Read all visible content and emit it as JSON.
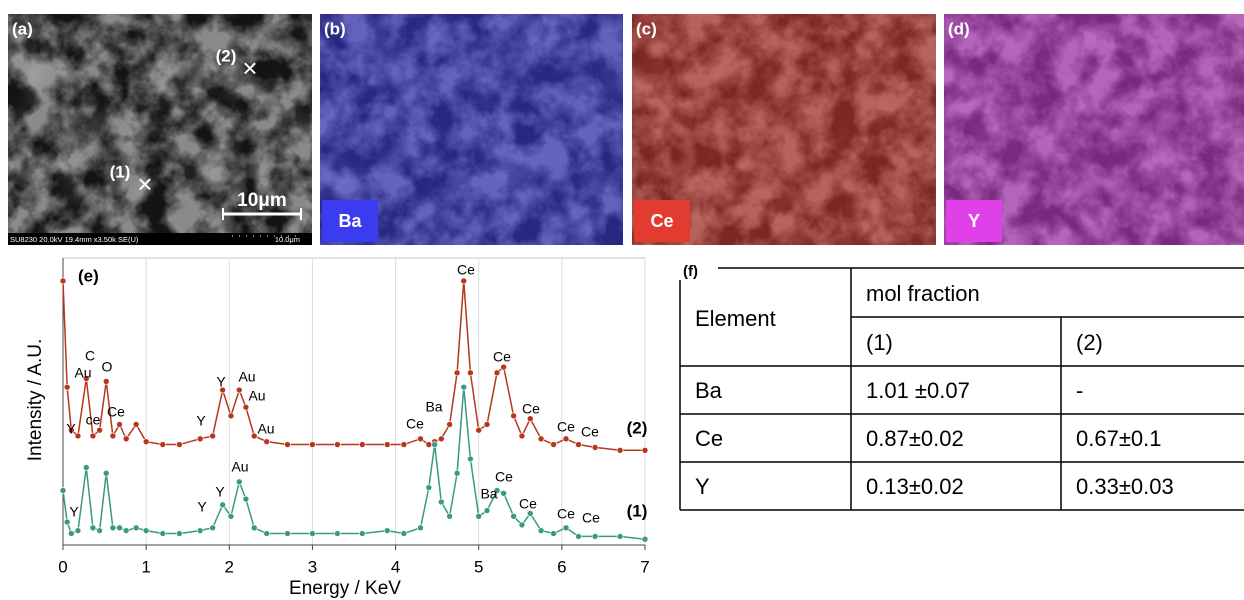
{
  "panels": [
    {
      "label": "(a)",
      "markers": [
        {
          "label": "(1)",
          "symbol": "×"
        },
        {
          "label": "(2)",
          "symbol": "×"
        }
      ],
      "scale_bar": "10μm",
      "info_bar": "SU8230 20.0kV 19.4mm x3.50k SE(U)",
      "info_scale": "10.0μm"
    },
    {
      "label": "(b)",
      "element": "Ba"
    },
    {
      "label": "(c)",
      "element": "Ce"
    },
    {
      "label": "(d)",
      "element": "Y"
    }
  ],
  "chart_data": {
    "type": "line",
    "label": "(e)",
    "xlabel": "Energy / KeV",
    "ylabel": "Intensity / A.U.",
    "x": [
      0,
      0.05,
      0.1,
      0.18,
      0.28,
      0.36,
      0.44,
      0.52,
      0.6,
      0.68,
      0.76,
      0.88,
      1.0,
      1.2,
      1.4,
      1.65,
      1.8,
      1.92,
      2.02,
      2.12,
      2.2,
      2.3,
      2.45,
      2.7,
      3.0,
      3.3,
      3.6,
      3.9,
      4.1,
      4.3,
      4.4,
      4.47,
      4.55,
      4.65,
      4.74,
      4.82,
      4.9,
      5.0,
      5.1,
      5.22,
      5.3,
      5.42,
      5.52,
      5.62,
      5.75,
      5.9,
      6.05,
      6.2,
      6.4,
      6.7,
      7.0
    ],
    "series": [
      {
        "name": "(2)",
        "color": "#b5371c",
        "values": [
          92,
          55,
          40,
          38,
          58,
          38,
          40,
          57,
          38,
          42,
          37,
          42,
          36,
          35,
          35,
          37,
          38,
          54,
          45,
          54,
          48,
          38,
          36,
          35,
          35,
          35,
          35,
          35,
          35,
          37,
          35,
          36,
          37,
          42,
          60,
          92,
          60,
          40,
          42,
          60,
          62,
          45,
          38,
          44,
          37,
          35,
          37,
          35,
          34,
          33,
          33
        ],
        "annotations": [
          "C",
          "Au",
          "O",
          "Y",
          "ce",
          "Ce",
          "Y",
          "Y",
          "Au",
          "Au",
          "Au",
          "Ce",
          "Ba",
          "Ce",
          "Ce",
          "Ce",
          "Ce",
          "Ce"
        ]
      },
      {
        "name": "(1)",
        "color": "#3a9a7f",
        "values": [
          19,
          8,
          4,
          5,
          27,
          6,
          5,
          25,
          6,
          6,
          5,
          6,
          5,
          4,
          4,
          5,
          6,
          14,
          10,
          22,
          16,
          6,
          4,
          4,
          4,
          4,
          4,
          5,
          4,
          6,
          20,
          35,
          15,
          10,
          25,
          55,
          30,
          10,
          12,
          19,
          18,
          10,
          7,
          11,
          5,
          4,
          6,
          3,
          3,
          3,
          2
        ],
        "annotations": [
          "Y",
          "Y",
          "Y",
          "Au",
          "Ba",
          "Ce",
          "Ce",
          "Ce",
          "Ce"
        ]
      }
    ],
    "xlim": [
      0,
      7
    ],
    "xticks": [
      0,
      1,
      2,
      3,
      4,
      5,
      6,
      7
    ],
    "ylim": [
      0,
      100
    ],
    "grid": true
  },
  "table": {
    "label": "(f)",
    "header": [
      "Element",
      "mol fraction"
    ],
    "subheader": [
      "(1)",
      "(2)"
    ],
    "rows": [
      [
        "Ba",
        "1.01 ±0.07",
        "-"
      ],
      [
        "Ce",
        "0.87±0.02",
        "0.67±0.1"
      ],
      [
        "Y",
        "0.13±0.02",
        "0.33±0.03"
      ]
    ]
  }
}
